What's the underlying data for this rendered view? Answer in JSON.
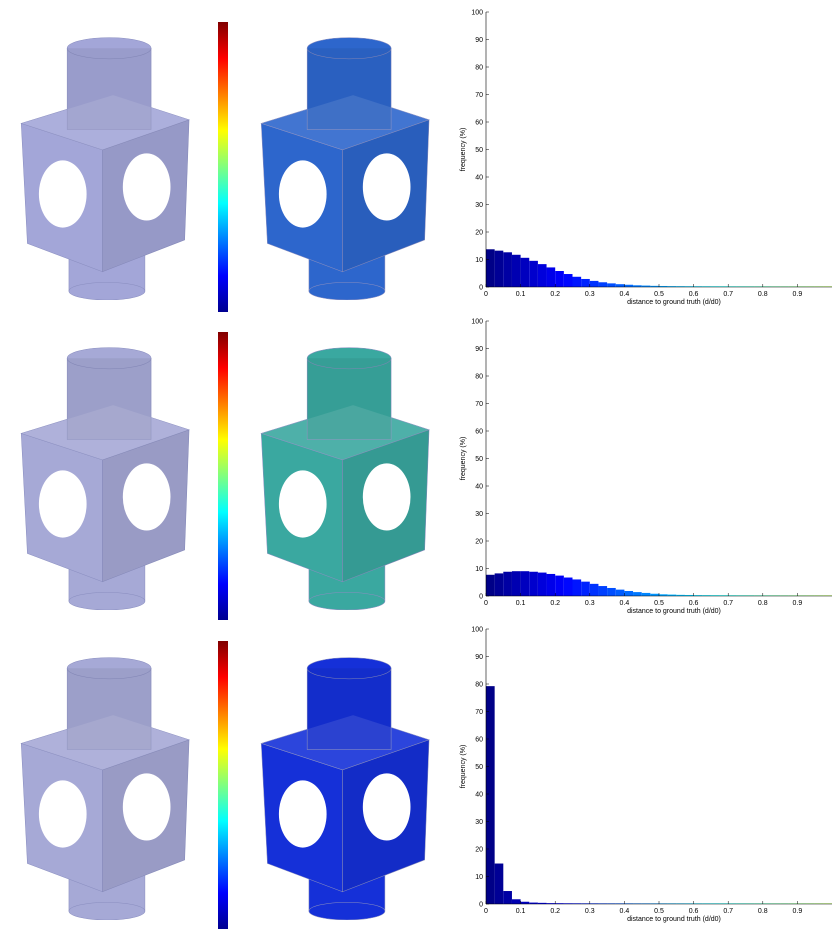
{
  "chart_data": [
    {
      "type": "histogram",
      "xlabel": "distance to ground truth (d/d0)",
      "ylabel": "frequency (%)",
      "bins": [
        0,
        0.025,
        0.05,
        0.075,
        0.1,
        0.125,
        0.15,
        0.175,
        0.2,
        0.225,
        0.25,
        0.275,
        0.3,
        0.325,
        0.35,
        0.375,
        0.4,
        0.425,
        0.45,
        0.475,
        0.5,
        0.525,
        0.55,
        0.575,
        0.6,
        0.625,
        0.65,
        0.675,
        0.7,
        0.725,
        0.75,
        0.775,
        0.8,
        0.825,
        0.85,
        0.875,
        0.9,
        0.925,
        0.95,
        0.975,
        1
      ],
      "values": [
        13.5,
        13,
        12.4,
        11.5,
        10.4,
        9.3,
        8.1,
        6.9,
        5.6,
        4.5,
        3.5,
        2.7,
        2,
        1.5,
        1.1,
        0.8,
        0.6,
        0.4,
        0.3,
        0.2,
        0.15,
        0.1,
        0.08,
        0.06,
        0.05,
        0.04,
        0.03,
        0.03,
        0.02,
        0.02,
        0.02,
        0.02,
        0.02,
        0.01,
        0.01,
        0.01,
        0.01,
        0.01,
        0.01,
        0.01
      ],
      "xlim": [
        0,
        1
      ],
      "ylim": [
        0,
        100
      ],
      "xticks": [
        0,
        0.1,
        0.2,
        0.3,
        0.4,
        0.5,
        0.6,
        0.7,
        0.8,
        0.9
      ],
      "yticks": [
        0,
        10,
        20,
        30,
        40,
        50,
        60,
        70,
        80,
        90,
        100
      ],
      "colormap": "jet",
      "colormap_range": [
        0,
        1.8
      ]
    },
    {
      "type": "histogram",
      "xlabel": "distance to ground truth (d/d0)",
      "ylabel": "frequency (%)",
      "bins": [
        0,
        0.025,
        0.05,
        0.075,
        0.1,
        0.125,
        0.15,
        0.175,
        0.2,
        0.225,
        0.25,
        0.275,
        0.3,
        0.325,
        0.35,
        0.375,
        0.4,
        0.425,
        0.45,
        0.475,
        0.5,
        0.525,
        0.55,
        0.575,
        0.6,
        0.625,
        0.65,
        0.675,
        0.7,
        0.725,
        0.75,
        0.775,
        0.8,
        0.825,
        0.85,
        0.875,
        0.9,
        0.925,
        0.95,
        0.975,
        1
      ],
      "values": [
        7.5,
        8,
        8.6,
        8.8,
        8.8,
        8.6,
        8.3,
        7.8,
        7.2,
        6.5,
        5.8,
        5,
        4.2,
        3.4,
        2.7,
        2.1,
        1.6,
        1.2,
        0.9,
        0.6,
        0.4,
        0.3,
        0.2,
        0.15,
        0.1,
        0.08,
        0.06,
        0.05,
        0.04,
        0.03,
        0.03,
        0.02,
        0.02,
        0.02,
        0.01,
        0.01,
        0.01,
        0.01,
        0.01,
        0.01
      ],
      "xlim": [
        0,
        1
      ],
      "ylim": [
        0,
        100
      ],
      "xticks": [
        0,
        0.1,
        0.2,
        0.3,
        0.4,
        0.5,
        0.6,
        0.7,
        0.8,
        0.9
      ],
      "yticks": [
        0,
        10,
        20,
        30,
        40,
        50,
        60,
        70,
        80,
        90,
        100
      ],
      "colormap": "jet",
      "colormap_range": [
        0,
        1.8
      ]
    },
    {
      "type": "histogram",
      "xlabel": "distance to ground truth (d/d0)",
      "ylabel": "frequency (%)",
      "bins": [
        0,
        0.025,
        0.05,
        0.075,
        0.1,
        0.125,
        0.15,
        0.175,
        0.2,
        0.225,
        0.25,
        0.275,
        0.3,
        0.325,
        0.35,
        0.375,
        0.4,
        0.425,
        0.45,
        0.475,
        0.5,
        0.525,
        0.55,
        0.575,
        0.6,
        0.625,
        0.65,
        0.675,
        0.7,
        0.725,
        0.75,
        0.775,
        0.8,
        0.825,
        0.85,
        0.875,
        0.9,
        0.925,
        0.95,
        0.975,
        1
      ],
      "values": [
        79,
        14.5,
        4.5,
        1.5,
        0.6,
        0.3,
        0.2,
        0.1,
        0.08,
        0.05,
        0.04,
        0.03,
        0.03,
        0.02,
        0.02,
        0.02,
        0.02,
        0.01,
        0.01,
        0.01,
        0.01,
        0.01,
        0.01,
        0.01,
        0.01,
        0.01,
        0.01,
        0.01,
        0.01,
        0.01,
        0.01,
        0.01,
        0.01,
        0.01,
        0.01,
        0.01,
        0.01,
        0.01,
        0.01,
        0.01
      ],
      "xlim": [
        0,
        1
      ],
      "ylim": [
        0,
        100
      ],
      "xticks": [
        0,
        0.1,
        0.2,
        0.3,
        0.4,
        0.5,
        0.6,
        0.7,
        0.8,
        0.9
      ],
      "yticks": [
        0,
        10,
        20,
        30,
        40,
        50,
        60,
        70,
        80,
        90,
        100
      ],
      "colormap": "jet",
      "colormap_range": [
        0,
        1.8
      ]
    }
  ]
}
